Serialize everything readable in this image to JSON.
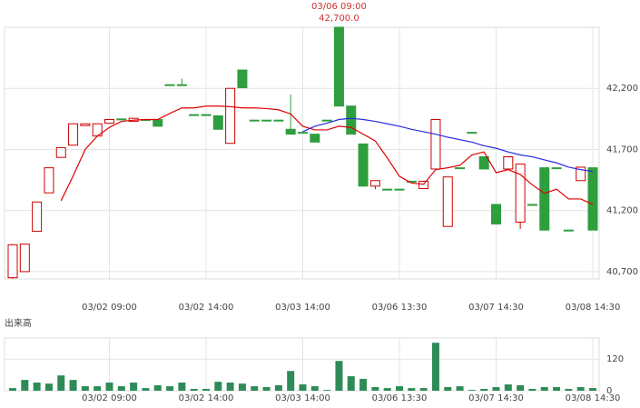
{
  "chart_data": [
    {
      "type": "candlestick",
      "open": [
        40650,
        40700,
        41030,
        41345,
        41635,
        41735,
        41895,
        41810,
        41915,
        41950,
        41930,
        41945,
        41945,
        42230,
        42230,
        41985,
        41985,
        41975,
        41750,
        42350,
        41940,
        41940,
        41940,
        41865,
        41840,
        41825,
        41940,
        42700,
        42055,
        41745,
        41400,
        41375,
        41375,
        41440,
        41380,
        41540,
        41070,
        41550,
        41840,
        41640,
        41250,
        41540,
        41105,
        41250,
        41550,
        41550,
        41040,
        41445,
        41550
      ],
      "high": [
        40925,
        40925,
        41270,
        41550,
        41715,
        41910,
        41910,
        41910,
        41945,
        41950,
        41955,
        41945,
        41945,
        42230,
        42280,
        41985,
        41985,
        41975,
        42200,
        42350,
        41940,
        41940,
        41940,
        42150,
        41840,
        41825,
        41940,
        42700,
        42055,
        41745,
        41445,
        41375,
        41375,
        41440,
        41440,
        41945,
        41475,
        41550,
        41840,
        41640,
        41250,
        41640,
        41580,
        41250,
        41550,
        41550,
        41040,
        41555,
        41550
      ],
      "low": [
        40640,
        40700,
        41030,
        41345,
        41635,
        41735,
        41895,
        41810,
        41915,
        41945,
        41930,
        41945,
        41890,
        42230,
        42225,
        41985,
        41985,
        41865,
        41750,
        42205,
        41930,
        41940,
        41940,
        41825,
        41840,
        41760,
        41940,
        42055,
        41825,
        41400,
        41375,
        41375,
        41375,
        41440,
        41380,
        41540,
        41070,
        41550,
        41840,
        41540,
        41090,
        41540,
        41050,
        41250,
        41040,
        41550,
        41040,
        41445,
        41040
      ],
      "close": [
        40920,
        40925,
        41270,
        41550,
        41715,
        41910,
        41910,
        41910,
        41945,
        41945,
        41955,
        41945,
        41890,
        42230,
        42225,
        41985,
        41985,
        41865,
        42200,
        42205,
        41940,
        41940,
        41940,
        41825,
        41840,
        41760,
        41940,
        42055,
        41825,
        41400,
        41445,
        41375,
        41375,
        41440,
        41440,
        41945,
        41475,
        41550,
        41840,
        41540,
        41090,
        41640,
        41580,
        41250,
        41040,
        41550,
        41040,
        41555,
        41040
      ],
      "up_color": "#cc0000",
      "down_color": "#2e9e3e",
      "lines": [
        {
          "color": "#e00000",
          "values": [
            null,
            null,
            null,
            null,
            41280,
            41483,
            41700,
            41810,
            41880,
            41930,
            41940,
            41945,
            41945,
            41995,
            42040,
            42040,
            42055,
            42055,
            42050,
            42040,
            42040,
            42035,
            42025,
            41990,
            41890,
            41860,
            41860,
            41890,
            41880,
            41825,
            41770,
            41630,
            41480,
            41425,
            41415,
            41535,
            41550,
            41570,
            41655,
            41680,
            41510,
            41535,
            41495,
            41410,
            41340,
            41375,
            41295,
            41295,
            41250
          ]
        },
        {
          "color": "#2a2ae0",
          "values": [
            null,
            null,
            null,
            null,
            null,
            null,
            null,
            null,
            null,
            null,
            null,
            null,
            null,
            null,
            null,
            null,
            null,
            null,
            null,
            null,
            null,
            null,
            null,
            null,
            41845,
            41890,
            41915,
            41945,
            41955,
            41945,
            41930,
            41910,
            41890,
            41865,
            41845,
            41825,
            41800,
            41780,
            41760,
            41730,
            41710,
            41680,
            41655,
            41640,
            41615,
            41590,
            41555,
            41535,
            41520
          ]
        }
      ],
      "annotation": {
        "index": 27,
        "time": "03/06 09:00",
        "value": 42700,
        "label": "42,700.0",
        "color": "#d03030"
      },
      "ylim": [
        40640,
        42700
      ],
      "yticks": [
        {
          "value": 40700,
          "label": "40,700"
        },
        {
          "value": 41200,
          "label": "41,200"
        },
        {
          "value": 41700,
          "label": "41,700"
        },
        {
          "value": 42200,
          "label": "42,200"
        }
      ],
      "xticks": [
        {
          "value": 8,
          "label": "03/02 09:00"
        },
        {
          "value": 16,
          "label": "03/02 14:00"
        },
        {
          "value": 24,
          "label": "03/03 14:00"
        },
        {
          "value": 32,
          "label": "03/06 13:30"
        },
        {
          "value": 40,
          "label": "03/07 14:30"
        },
        {
          "value": 48,
          "label": "03/08 14:30"
        }
      ],
      "grid": true
    },
    {
      "type": "bar",
      "title": "出来高",
      "color": "#2e8b57",
      "values": [
        10,
        41,
        31,
        27,
        58,
        41,
        17,
        17,
        31,
        17,
        31,
        10,
        21,
        17,
        31,
        7,
        7,
        34,
        31,
        27,
        17,
        14,
        21,
        75,
        24,
        17,
        3,
        113,
        55,
        45,
        14,
        10,
        17,
        10,
        10,
        182,
        14,
        17,
        3,
        7,
        14,
        24,
        21,
        7,
        14,
        14,
        7,
        14,
        10
      ],
      "ylim": [
        0,
        200
      ],
      "yticks": [
        0,
        120
      ],
      "xticks": [
        {
          "value": 8,
          "label": "03/02 09:00"
        },
        {
          "value": 16,
          "label": "03/02 14:00"
        },
        {
          "value": 24,
          "label": "03/03 14:00"
        },
        {
          "value": 32,
          "label": "03/06 13:30"
        },
        {
          "value": 40,
          "label": "03/07 14:30"
        },
        {
          "value": 48,
          "label": "03/08 14:30"
        }
      ],
      "grid": true
    }
  ]
}
